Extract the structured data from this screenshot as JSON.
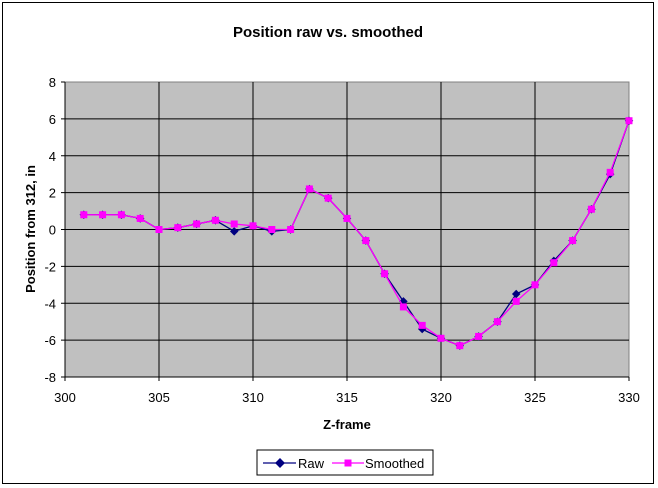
{
  "chart_data": {
    "type": "line",
    "title": "Position raw vs. smoothed",
    "xlabel": "Z-frame",
    "ylabel": "Position from 312, in",
    "xlim": [
      300,
      330
    ],
    "ylim": [
      -8,
      8
    ],
    "x_ticks": [
      300,
      305,
      310,
      315,
      320,
      325,
      330
    ],
    "y_ticks": [
      -8,
      -6,
      -4,
      -2,
      0,
      2,
      4,
      6,
      8
    ],
    "grid": true,
    "plot_background": "#C0C0C0",
    "legend_position": "bottom",
    "x": [
      301,
      302,
      303,
      304,
      305,
      306,
      307,
      308,
      309,
      310,
      311,
      312,
      313,
      314,
      315,
      316,
      317,
      318,
      319,
      320,
      321,
      322,
      323,
      324,
      325,
      326,
      327,
      328,
      329,
      330
    ],
    "series": [
      {
        "name": "Raw",
        "color": "#000080",
        "marker": "diamond",
        "values": [
          0.8,
          0.8,
          0.8,
          0.6,
          0.0,
          0.1,
          0.3,
          0.5,
          -0.1,
          0.2,
          -0.1,
          0.0,
          2.2,
          1.7,
          0.6,
          -0.6,
          -2.4,
          -3.9,
          -5.4,
          -5.9,
          -6.3,
          -5.8,
          -5.0,
          -3.5,
          -3.0,
          -1.7,
          -0.6,
          1.1,
          3.0,
          5.9
        ]
      },
      {
        "name": "Smoothed",
        "color": "#FF00FF",
        "marker": "square",
        "values": [
          0.8,
          0.8,
          0.8,
          0.6,
          0.0,
          0.1,
          0.3,
          0.5,
          0.3,
          0.2,
          0.0,
          0.0,
          2.2,
          1.7,
          0.6,
          -0.6,
          -2.4,
          -4.2,
          -5.2,
          -5.9,
          -6.3,
          -5.8,
          -5.0,
          -3.9,
          -3.0,
          -1.8,
          -0.6,
          1.1,
          3.1,
          5.9
        ]
      }
    ]
  }
}
